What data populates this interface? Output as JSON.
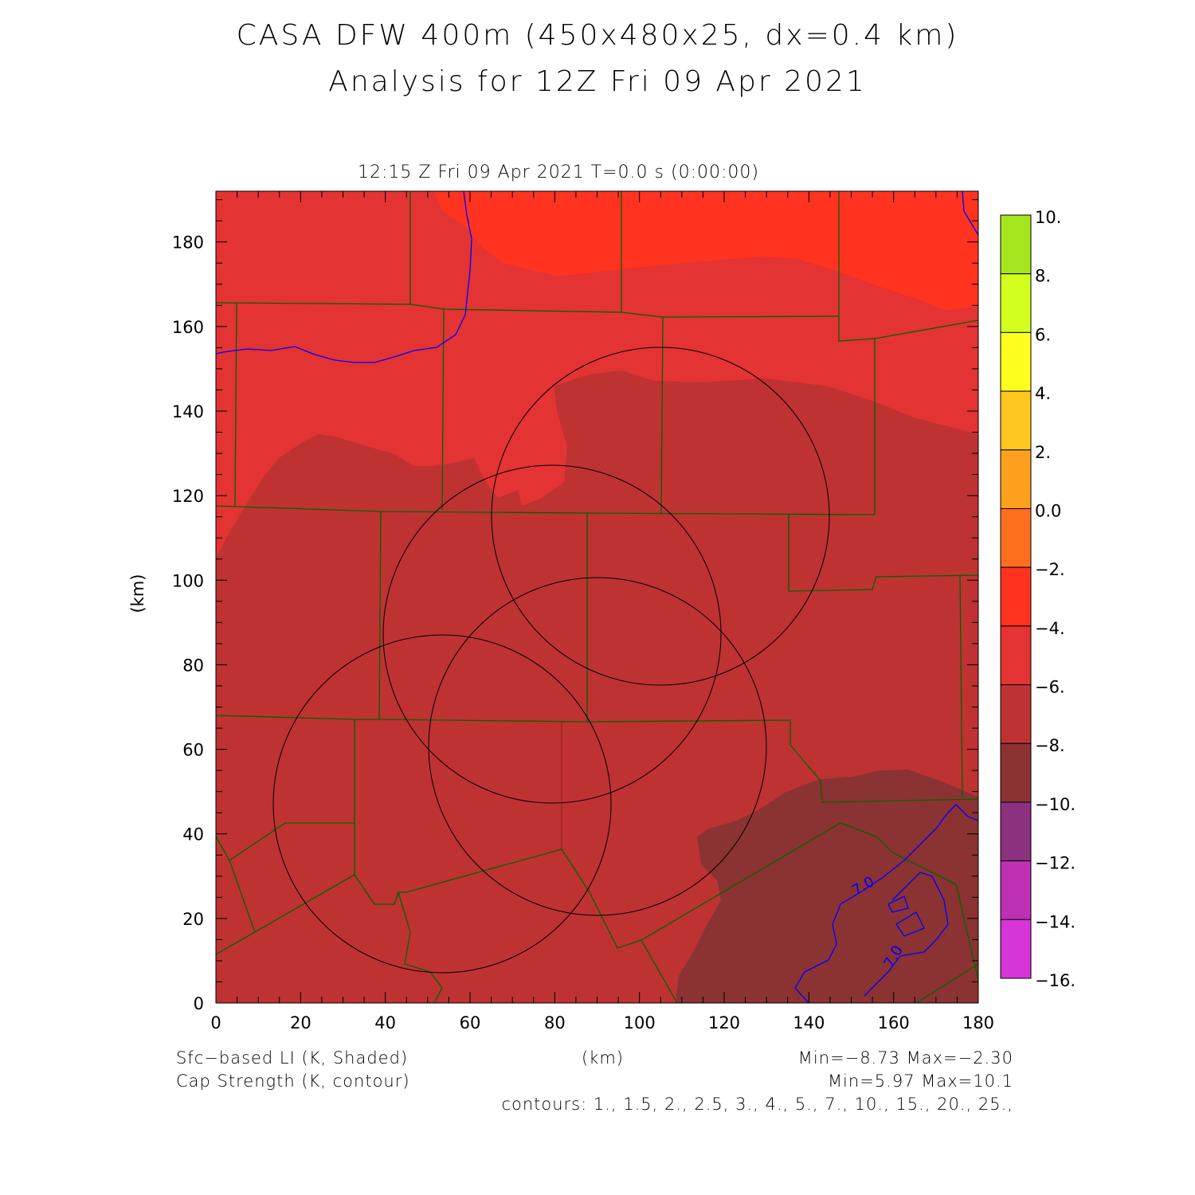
{
  "title": {
    "line1": "CASA DFW 400m (450x480x25, dx=0.4 km)",
    "line2": "Analysis for 12Z Fri 09 Apr 2021"
  },
  "subtitle": "12:15 Z Fri 09 Apr 2021    T=0.0 s (0:00:00)",
  "axes": {
    "xlabel": "(km)",
    "ylabel": "(km)",
    "xrange": [
      0,
      180
    ],
    "yrange": [
      0,
      192
    ],
    "xticks": [
      "0",
      "20",
      "40",
      "60",
      "80",
      "100",
      "120",
      "140",
      "160",
      "180"
    ],
    "yticks": [
      "0",
      "20",
      "40",
      "60",
      "80",
      "100",
      "120",
      "140",
      "160",
      "180"
    ]
  },
  "colorbar": {
    "labels": [
      "10.",
      "8.",
      "6.",
      "4.",
      "2.",
      "0.0",
      "−2.",
      "−4.",
      "−6.",
      "−8.",
      "−10.",
      "−12.",
      "−14.",
      "−16."
    ],
    "colors": [
      "#a5e61e",
      "#d2ff1e",
      "#ffff1e",
      "#ffc81e",
      "#ffa01e",
      "#ff6e1e",
      "#ff3320",
      "#e33333",
      "#be3232",
      "#8b3232",
      "#8c3080",
      "#bd30b4",
      "#d835d8"
    ]
  },
  "contour_labels": [
    "7.0",
    "7.0"
  ],
  "footer": {
    "field1": "Sfc−based LI (K, Shaded)",
    "field2": "Cap Strength (K, contour)",
    "minmax1": "Min=−8.73 Max=−2.30",
    "minmax2": "Min=5.97 Max=10.1",
    "contours": "contours: 1., 1.5, 2., 2.5, 3., 4., 5., 7., 10., 15., 20., 25.,"
  }
}
